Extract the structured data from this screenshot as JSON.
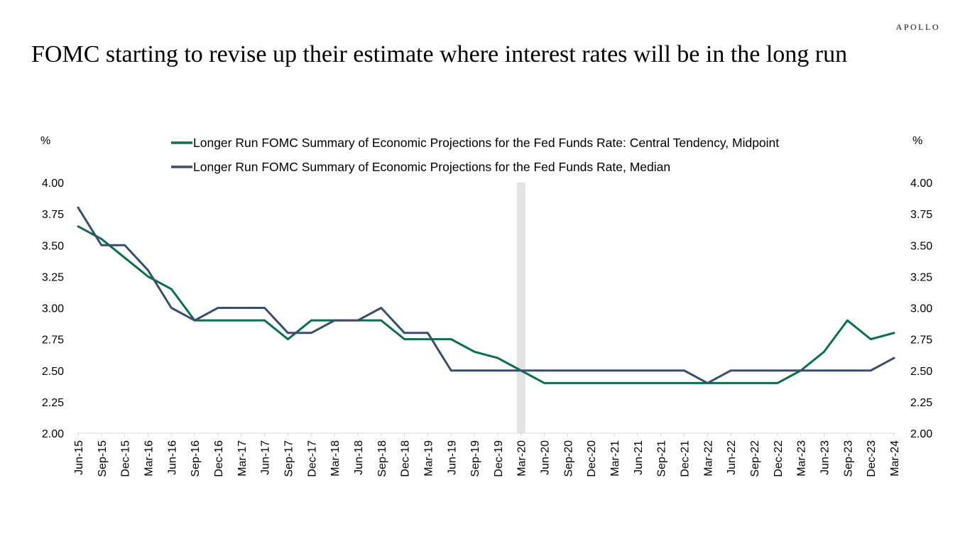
{
  "brand": "APOLLO",
  "title": "FOMC starting to revise up their estimate where interest rates will be in the long run",
  "chart_data": {
    "type": "line",
    "left_axis_unit": "%",
    "right_axis_unit": "%",
    "ylim": [
      2.0,
      4.0
    ],
    "yticks": [
      "4.00",
      "3.75",
      "3.50",
      "3.25",
      "3.00",
      "2.75",
      "2.50",
      "2.25",
      "2.00"
    ],
    "categories": [
      "Jun-15",
      "Sep-15",
      "Dec-15",
      "Mar-16",
      "Jun-16",
      "Sep-16",
      "Dec-16",
      "Mar-17",
      "Jun-17",
      "Sep-17",
      "Dec-17",
      "Mar-18",
      "Jun-18",
      "Sep-18",
      "Dec-18",
      "Mar-19",
      "Jun-19",
      "Sep-19",
      "Dec-19",
      "Mar-20",
      "Jun-20",
      "Sep-20",
      "Dec-20",
      "Mar-21",
      "Jun-21",
      "Sep-21",
      "Dec-21",
      "Mar-22",
      "Jun-22",
      "Sep-22",
      "Dec-22",
      "Mar-23",
      "Jun-23",
      "Sep-23",
      "Dec-23",
      "Mar-24"
    ],
    "shaded_period": "Mar-20",
    "shade_color": "#e3e3e3",
    "legend_position": "top-center",
    "series": [
      {
        "name": "Longer Run FOMC Summary of Economic Projections for the Fed Funds Rate: Central Tendency, Midpoint",
        "color": "#0b6e4f",
        "values": [
          3.65,
          3.55,
          3.4,
          3.25,
          3.15,
          2.9,
          2.9,
          2.9,
          2.9,
          2.75,
          2.9,
          2.9,
          2.9,
          2.9,
          2.75,
          2.75,
          2.75,
          2.65,
          2.6,
          2.5,
          2.4,
          2.4,
          2.4,
          2.4,
          2.4,
          2.4,
          2.4,
          2.4,
          2.4,
          2.4,
          2.4,
          2.5,
          2.65,
          2.9,
          2.75,
          2.8
        ]
      },
      {
        "name": "Longer Run FOMC Summary of Economic Projections for the Fed Funds Rate, Median",
        "color": "#3a4f6b",
        "values": [
          3.8,
          3.5,
          3.5,
          3.3,
          3.0,
          2.9,
          3.0,
          3.0,
          3.0,
          2.8,
          2.8,
          2.9,
          2.9,
          3.0,
          2.8,
          2.8,
          2.5,
          2.5,
          2.5,
          2.5,
          2.5,
          2.5,
          2.5,
          2.5,
          2.5,
          2.5,
          2.5,
          2.4,
          2.5,
          2.5,
          2.5,
          2.5,
          2.5,
          2.5,
          2.5,
          2.6
        ]
      }
    ]
  }
}
